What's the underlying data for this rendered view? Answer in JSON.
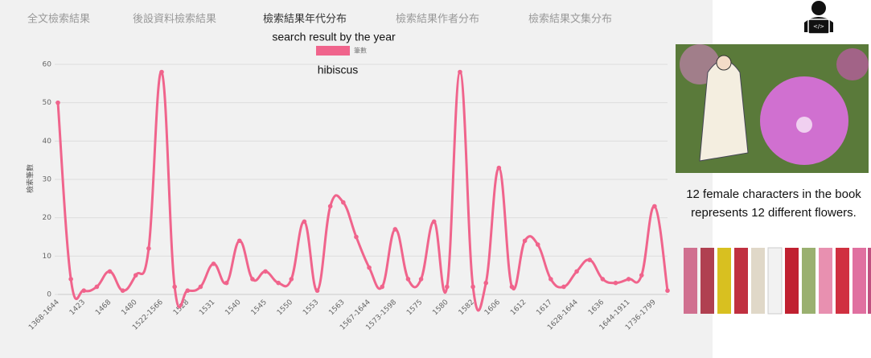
{
  "tabs": [
    "全文檢索結果",
    "後設資料檢索結果",
    "檢索結果年代分布",
    "檢索結果作者分布",
    "檢索結果文集分布"
  ],
  "annotation": "search result by the year",
  "caption": "12 female characters in the book represents 12 different flowers.",
  "chart_data": {
    "type": "line",
    "subtitle": "hibiscus",
    "y_label": "檢索筆數",
    "categories": [
      "1368-1644",
      null,
      "1423",
      null,
      "1468",
      null,
      "1480",
      null,
      "1522-1566",
      null,
      "1528",
      null,
      "1531",
      null,
      "1540",
      null,
      "1545",
      null,
      "1550",
      null,
      "1553",
      null,
      "1563",
      null,
      "1567-1644",
      null,
      "1573-1598",
      null,
      "1575",
      null,
      "1580",
      null,
      "1582",
      null,
      "1606",
      null,
      "1612",
      null,
      "1617",
      null,
      "1628-1644",
      null,
      "1636",
      null,
      "1644-1911",
      null,
      "1736-1799",
      null
    ],
    "series": [
      {
        "name": "筆數",
        "color": "#f0648c",
        "values": [
          50,
          4,
          1,
          2,
          6,
          1,
          5,
          12,
          58,
          2,
          1,
          2,
          8,
          3,
          14,
          4,
          6,
          3,
          4,
          19,
          1,
          23,
          24,
          15,
          7,
          2,
          17,
          4,
          4,
          19,
          2,
          58,
          2,
          3,
          33,
          2,
          14,
          13,
          4,
          2,
          6,
          9,
          4,
          3,
          4,
          5,
          23,
          1
        ]
      }
    ],
    "ylim": [
      0,
      60
    ],
    "yticks": [
      0,
      10,
      20,
      30,
      40,
      50,
      60
    ],
    "grid": true
  }
}
